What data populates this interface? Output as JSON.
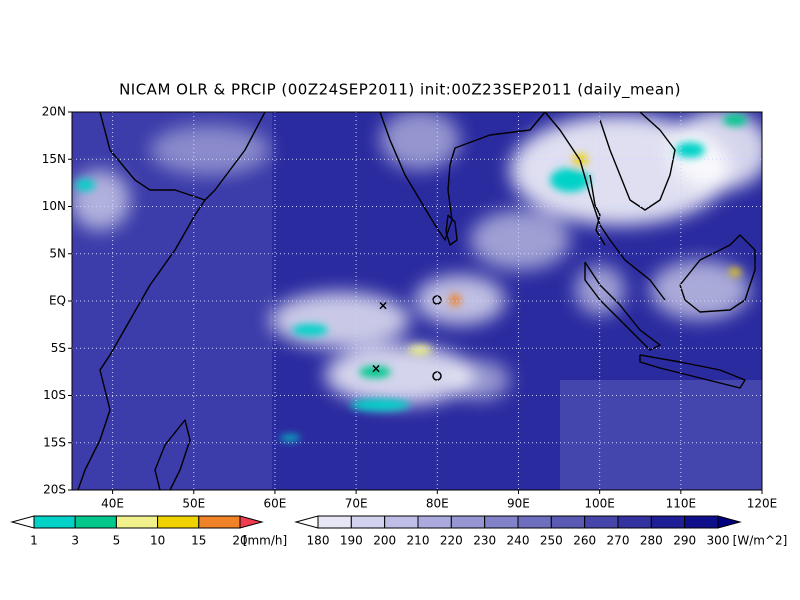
{
  "title": "NICAM OLR & PRCIP (00Z24SEP2011) init:00Z23SEP2011 (daily_mean)",
  "map": {
    "lat_labels": [
      "20N",
      "15N",
      "10N",
      "5N",
      "EQ",
      "5S",
      "10S",
      "15S",
      "20S"
    ],
    "lon_labels": [
      "40E",
      "50E",
      "60E",
      "70E",
      "80E",
      "90E",
      "100E",
      "110E",
      "120E"
    ]
  },
  "precip_colorbar": {
    "labels": [
      "1",
      "3",
      "5",
      "10",
      "15",
      "20"
    ],
    "unit": "[mm/h]",
    "colors": [
      "#ffffff",
      "#00d2c8",
      "#00c88c",
      "#f0f08c",
      "#f0d200",
      "#f08228",
      "#f03c50"
    ]
  },
  "olr_colorbar": {
    "labels": [
      "180",
      "190",
      "200",
      "210",
      "220",
      "230",
      "240",
      "250",
      "260",
      "270",
      "280",
      "290",
      "300"
    ],
    "unit": "[W/m^2]",
    "colors": [
      "#ffffff",
      "#e6e6f5",
      "#d2d2ee",
      "#bebee6",
      "#aaaade",
      "#9696d2",
      "#8282c8",
      "#6e6ebe",
      "#5a5ab4",
      "#4646aa",
      "#3232a0",
      "#1e1e96",
      "#0f0f8c",
      "#000080"
    ]
  }
}
